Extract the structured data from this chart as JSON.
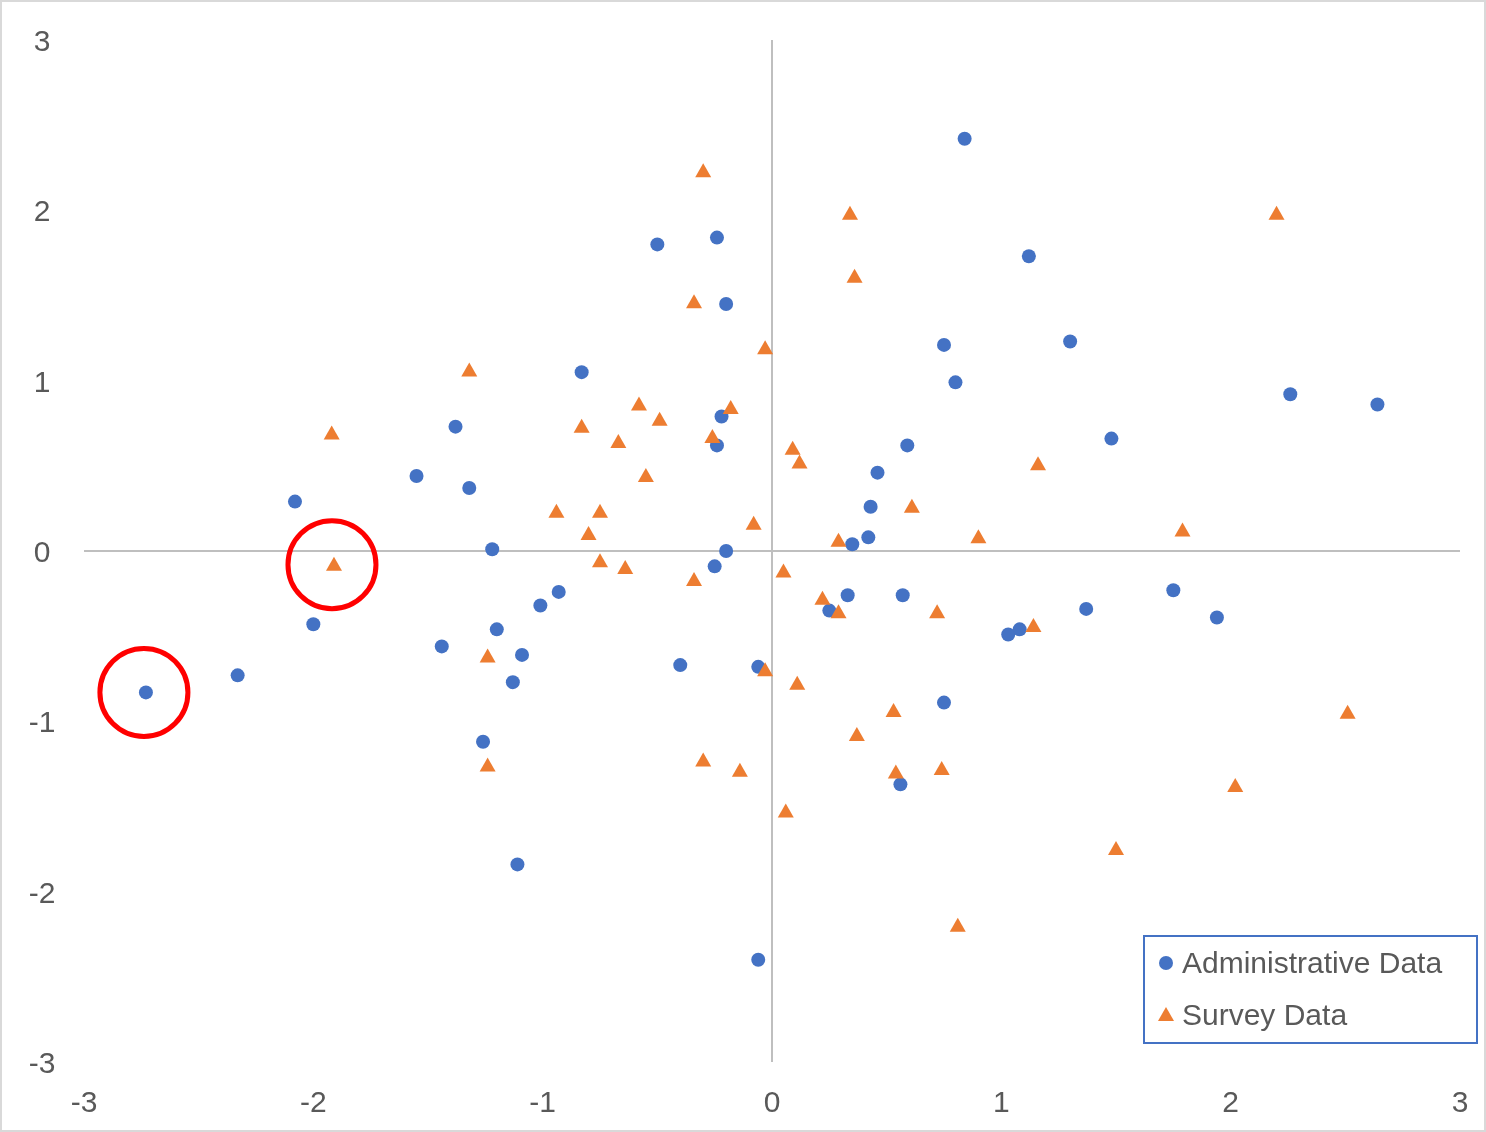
{
  "chart_data": {
    "type": "scatter",
    "xlim": [
      -3,
      3
    ],
    "ylim": [
      -3,
      3
    ],
    "xticks": [
      -3,
      -2,
      -1,
      0,
      1,
      2,
      3
    ],
    "yticks": [
      -3,
      -2,
      -1,
      0,
      1,
      2,
      3
    ],
    "legend": "bottom right",
    "series": [
      {
        "name": "Administrative Data",
        "color": "#4472c4",
        "marker": "circle",
        "x": [
          0.84,
          -0.5,
          -0.24,
          -0.2,
          1.12,
          1.3,
          0.75,
          0.8,
          -0.83,
          -1.38,
          -0.22,
          -0.24,
          0.59,
          0.46,
          2.26,
          2.64,
          1.48,
          -1.55,
          -1.32,
          -2.08,
          0.43,
          0.42,
          0.35,
          -1.22,
          -0.2,
          -0.25,
          -0.93,
          -1.01,
          0.33,
          0.25,
          0.57,
          1.75,
          1.94,
          1.37,
          1.03,
          1.08,
          -2.0,
          -1.2,
          -1.09,
          -1.44,
          -1.13,
          -0.4,
          -0.06,
          -2.33,
          -2.73,
          0.75,
          -1.26,
          0.56,
          -1.11,
          -0.06
        ],
        "values": [
          2.42,
          1.8,
          1.84,
          1.45,
          1.73,
          1.23,
          1.21,
          0.99,
          1.05,
          0.73,
          0.79,
          0.62,
          0.62,
          0.46,
          0.92,
          0.86,
          0.66,
          0.44,
          0.37,
          0.29,
          0.26,
          0.08,
          0.04,
          0.01,
          0.0,
          -0.09,
          -0.24,
          -0.32,
          -0.26,
          -0.35,
          -0.26,
          -0.23,
          -0.39,
          -0.34,
          -0.49,
          -0.46,
          -0.43,
          -0.46,
          -0.61,
          -0.56,
          -0.77,
          -0.67,
          -0.68,
          -0.73,
          -0.83,
          -0.89,
          -1.12,
          -1.37,
          -1.84,
          -2.4
        ]
      },
      {
        "name": "Survey Data",
        "color": "#ed7d31",
        "marker": "triangle",
        "x": [
          -0.3,
          0.34,
          2.2,
          0.36,
          -0.34,
          -0.03,
          -1.32,
          -0.58,
          -0.18,
          -0.49,
          -0.83,
          -1.92,
          -0.26,
          -0.67,
          0.09,
          0.12,
          1.16,
          -0.55,
          -0.94,
          -0.75,
          0.61,
          -0.08,
          -0.8,
          1.79,
          0.29,
          0.9,
          -1.91,
          -0.75,
          -0.64,
          0.05,
          -0.34,
          0.22,
          0.29,
          0.72,
          1.14,
          -1.24,
          -0.03,
          0.11,
          0.53,
          2.51,
          0.37,
          -0.3,
          -0.14,
          0.54,
          0.74,
          -1.24,
          2.02,
          0.06,
          1.5,
          0.81
        ],
        "values": [
          2.23,
          1.98,
          1.98,
          1.61,
          1.46,
          1.19,
          1.06,
          0.86,
          0.84,
          0.77,
          0.73,
          0.69,
          0.67,
          0.64,
          0.6,
          0.52,
          0.51,
          0.44,
          0.23,
          0.23,
          0.26,
          0.16,
          0.1,
          0.12,
          0.06,
          0.08,
          -0.08,
          -0.06,
          -0.1,
          -0.12,
          -0.17,
          -0.28,
          -0.36,
          -0.36,
          -0.44,
          -0.62,
          -0.7,
          -0.78,
          -0.94,
          -0.95,
          -1.08,
          -1.23,
          -1.29,
          -1.3,
          -1.28,
          -1.26,
          -1.38,
          -1.53,
          -1.75,
          -2.2
        ]
      }
    ]
  }
}
